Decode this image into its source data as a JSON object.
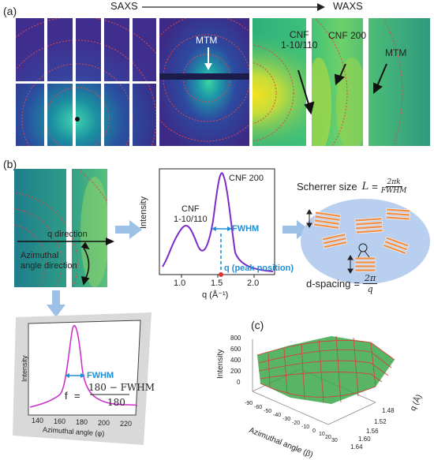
{
  "panel_a": {
    "tag": "(a)",
    "saxs": "SAXS",
    "waxs": "WAXS",
    "mtm_mid": "MTM",
    "cnf_110_line1": "CNF",
    "cnf_110_line2": "1-10/110",
    "cnf_200": "CNF 200",
    "mtm_right": "MTM"
  },
  "panel_b": {
    "tag": "(b)",
    "q_direction": "q direction",
    "azimuthal_line1": "Azimuthal",
    "azimuthal_line2": "angle direction",
    "plot": {
      "ylabel": "Intensity",
      "xlabel": "q (Å⁻¹)",
      "ticks": [
        "1.0",
        "1.5",
        "2.0"
      ],
      "cnf200": "CNF 200",
      "cnf110_line1": "CNF",
      "cnf110_line2": "1-10/110",
      "fwhm": "FWHM",
      "peak_position": "q (peak position)"
    },
    "scherrer": {
      "prefix": "Scherrer size",
      "L": "L",
      "equals": "=",
      "numerator": "2πk",
      "denominator": "FWHM"
    },
    "dspacing": {
      "prefix": "d-spacing",
      "equals": "=",
      "numerator": "2π",
      "denominator": "q"
    },
    "azimuthal_plot": {
      "ylabel": "Intensity",
      "xlabel": "Azimuthal angle (φ)",
      "ticks": [
        "140",
        "160",
        "180",
        "200",
        "220"
      ],
      "fwhm": "FWHM",
      "formula_f": "f",
      "formula_eq": "=",
      "formula_num": "180 − FWHM",
      "formula_den": "180"
    }
  },
  "panel_c": {
    "tag": "(c)",
    "zlabel": "Intensity",
    "xlabel": "Azimuthal angle (β)",
    "ylabel": "q (Å)",
    "z_ticks": [
      "800",
      "600",
      "400",
      "200",
      "0"
    ],
    "x_ticks": [
      "-90",
      "-60",
      "-50",
      "-40",
      "-30",
      "-20",
      "-10",
      "0",
      "10",
      "20",
      "30"
    ],
    "y_ticks": [
      "1.48",
      "1.52",
      "1.56",
      "1.60",
      "1.64"
    ]
  },
  "colors": {
    "accent_blue": "#1f8fd8",
    "purple_curve": "#7b2cc9",
    "magenta_curve": "#cc33cc",
    "arrow_blue": "#9cc0e6",
    "orange_bar": "#f0904a",
    "ellipse": "#b8cff0"
  }
}
